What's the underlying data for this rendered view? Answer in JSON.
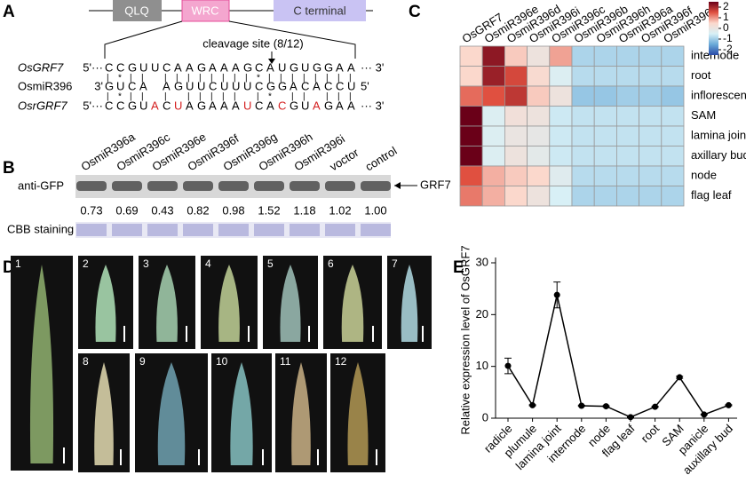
{
  "panel_labels": [
    "A",
    "B",
    "C",
    "D",
    "E"
  ],
  "panel_a": {
    "domains": [
      "QLQ",
      "WRC",
      "C terminal"
    ],
    "cleavage_site": "cleavage site (8/12)",
    "rows": [
      {
        "name": "OsGRF7",
        "font_style": "italic",
        "left": "5'···",
        "right": "··· 3'",
        "segments": [
          {
            "text": "CCGUUCAAGAAAGCAUGUGGAA",
            "color": "#000000"
          }
        ]
      },
      {
        "name": "OsmiR396",
        "font_style": "normal",
        "left": "3'",
        "right": "5'",
        "segments": [
          {
            "text": "GUCA AGUUCUUUCGGACACCU",
            "color": "#000000"
          }
        ]
      },
      {
        "name": "OsrGRF7",
        "font_style": "italic",
        "left": "5'···",
        "right": "··· 3'",
        "segments": [
          {
            "text": "CCGU",
            "color": "#000000"
          },
          {
            "text": "A",
            "color": "#d42020"
          },
          {
            "text": "C",
            "color": "#000000"
          },
          {
            "text": "U",
            "color": "#d42020"
          },
          {
            "text": "AGAAA",
            "color": "#000000"
          },
          {
            "text": "U",
            "color": "#d42020"
          },
          {
            "text": "CA",
            "color": "#000000"
          },
          {
            "text": "C",
            "color": "#d42020"
          },
          {
            "text": "GU",
            "color": "#000000"
          },
          {
            "text": "A",
            "color": "#d42020"
          },
          {
            "text": "GAA",
            "color": "#000000"
          }
        ]
      }
    ],
    "pairing": [
      "|*|| ||||||||*||||||||",
      "|*|| | ||||| |* || |||"
    ]
  },
  "panel_b": {
    "lanes": [
      "OsmiR396a",
      "OsmiR396c",
      "OsmiR396e",
      "OsmiR396f",
      "OsmiR396g",
      "OsmiR396h",
      "OsmiR396i",
      "voctor",
      "control"
    ],
    "ratios": [
      "0.73",
      "0.69",
      "0.43",
      "0.82",
      "0.98",
      "1.52",
      "1.18",
      "1.02",
      "1.00"
    ],
    "antibody": "anti-GFP",
    "stain": "CBB staining",
    "band": "GRF7"
  },
  "panel_d": {
    "labels": [
      "1",
      "2",
      "3",
      "4",
      "5",
      "6",
      "7",
      "8",
      "9",
      "10",
      "11",
      "12"
    ]
  },
  "chart_data": [
    {
      "type": "heatmap",
      "x": [
        "OsGRF7",
        "OsmiR396e",
        "OsmiR396d",
        "OsmiR396i",
        "OsmiR396c",
        "OsmiR396b",
        "OsmiR396h",
        "OsmiR396a",
        "OsmiR396f",
        "OsmiR396g"
      ],
      "y": [
        "internode",
        "root",
        "inflorescence",
        "SAM",
        "lamina joint",
        "axillary bud",
        "node",
        "flag leaf"
      ],
      "values": [
        [
          0.5,
          2.2,
          0.6,
          0.1,
          0.9,
          -0.9,
          -0.9,
          -0.9,
          -0.9,
          -0.9
        ],
        [
          0.5,
          2.1,
          1.6,
          0.4,
          -0.4,
          -0.8,
          -0.8,
          -0.8,
          -0.8,
          -0.8
        ],
        [
          1.3,
          1.5,
          1.8,
          0.6,
          0.1,
          -1.1,
          -1.1,
          -1,
          -1,
          -1.1
        ],
        [
          2.5,
          -0.4,
          0.2,
          0.1,
          -0.6,
          -0.7,
          -0.7,
          -0.7,
          -0.7,
          -0.7
        ],
        [
          2.5,
          -0.4,
          0,
          -0.1,
          -0.6,
          -0.7,
          -0.7,
          -0.7,
          -0.7,
          -0.7
        ],
        [
          2.5,
          -0.4,
          0.1,
          -0.2,
          -0.6,
          -0.7,
          -0.7,
          -0.7,
          -0.7,
          -0.7
        ],
        [
          1.5,
          0.8,
          0.6,
          0.5,
          -0.3,
          -0.8,
          -0.8,
          -0.8,
          -0.8,
          -0.8
        ],
        [
          1.2,
          0.8,
          0.5,
          0.1,
          -0.5,
          -0.9,
          -0.9,
          -0.9,
          -0.9,
          -0.9
        ]
      ],
      "zlim": [
        -2.5,
        2.5
      ],
      "zticks": [
        2,
        1,
        0,
        -1,
        -2
      ],
      "colors": [
        "#2a4aa8",
        "#6aaad8",
        "#d8f0f6",
        "#fbd8cc",
        "#e05040",
        "#6a0018"
      ]
    },
    {
      "type": "line",
      "categories": [
        "radicle",
        "plumule",
        "lamina joint",
        "internode",
        "node",
        "flag leaf",
        "root",
        "SAM",
        "panicle",
        "auxillary bud"
      ],
      "values": [
        10.1,
        2.5,
        23.8,
        2.4,
        2.3,
        0.2,
        2.2,
        7.9,
        0.7,
        2.5
      ],
      "errors": [
        1.5,
        0.1,
        2.5,
        0.1,
        0.1,
        0.05,
        0.1,
        0.2,
        0.05,
        0.1
      ],
      "ylabel": "Relative expression level of OsGRF7",
      "ylim": [
        0,
        30
      ],
      "yticks": [
        0,
        10,
        20,
        30
      ],
      "color": "#000000"
    }
  ]
}
